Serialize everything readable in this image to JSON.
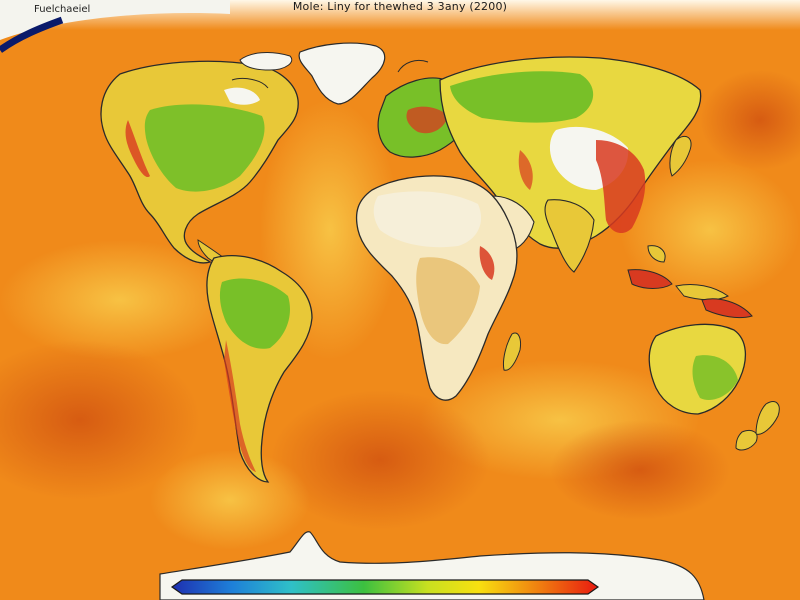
{
  "map": {
    "title": "Mole: Liny for thewhed 3 3any (2200)",
    "corner_label": "Fuelchaeiel",
    "projection": "equirectangular world map",
    "legend": {
      "type": "continuous color bar",
      "colors": [
        "#1e2fb0",
        "#1e7fd8",
        "#2fc0c8",
        "#3cc040",
        "#c8e020",
        "#f8e010",
        "#f08010",
        "#e81a10"
      ]
    },
    "palette": {
      "ocean_base": "#f08a1a",
      "ocean_light": "#f8c040",
      "ocean_dark": "#d85a10",
      "land_green": "#78c028",
      "land_yellow": "#e8d840",
      "land_red": "#d83a20",
      "snow": "#f6f6f0",
      "outline": "#2a2a2a"
    },
    "regions": [
      "north-america",
      "greenland",
      "south-america",
      "europe",
      "asia",
      "africa",
      "madagascar",
      "arabia",
      "india",
      "australia",
      "new-zealand",
      "antarctica",
      "japan",
      "indonesia"
    ]
  }
}
